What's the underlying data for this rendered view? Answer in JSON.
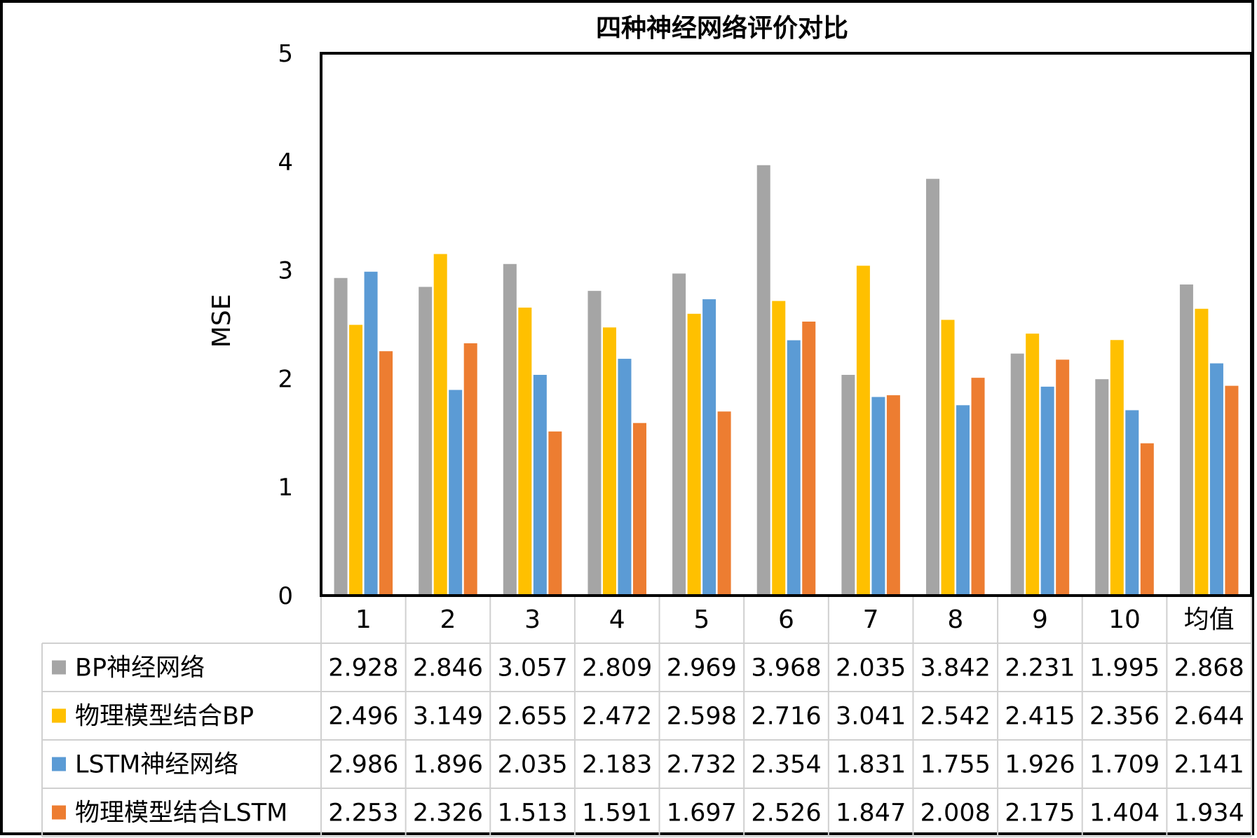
{
  "chart_data": {
    "type": "bar",
    "title": "四种神经网络评价对比",
    "ylabel": "MSE",
    "xlabel": "",
    "ylim": [
      0,
      5
    ],
    "yticks": [
      "0",
      "1",
      "2",
      "3",
      "4",
      "5"
    ],
    "grid": false,
    "legend": "data-table",
    "categories": [
      "1",
      "2",
      "3",
      "4",
      "5",
      "6",
      "7",
      "8",
      "9",
      "10",
      "均值"
    ],
    "series": [
      {
        "name": "BP神经网络",
        "color": "#a5a5a5",
        "values": [
          2.928,
          2.846,
          3.057,
          2.809,
          2.969,
          3.968,
          2.035,
          3.842,
          2.231,
          1.995,
          2.868
        ],
        "labels": [
          "2.928",
          "2.846",
          "3.057",
          "2.809",
          "2.969",
          "3.968",
          "2.035",
          "3.842",
          "2.231",
          "1.995",
          "2.868"
        ]
      },
      {
        "name": "物理模型结合BP",
        "color": "#ffc000",
        "values": [
          2.496,
          3.149,
          2.655,
          2.472,
          2.598,
          2.716,
          3.041,
          2.542,
          2.415,
          2.356,
          2.644
        ],
        "labels": [
          "2.496",
          "3.149",
          "2.655",
          "2.472",
          "2.598",
          "2.716",
          "3.041",
          "2.542",
          "2.415",
          "2.356",
          "2.644"
        ]
      },
      {
        "name": "LSTM神经网络",
        "color": "#5b9bd5",
        "values": [
          2.986,
          1.896,
          2.035,
          2.183,
          2.732,
          2.354,
          1.831,
          1.755,
          1.926,
          1.709,
          2.141
        ],
        "labels": [
          "2.986",
          "1.896",
          "2.035",
          "2.183",
          "2.732",
          "2.354",
          "1.831",
          "1.755",
          "1.926",
          "1.709",
          "2.141"
        ]
      },
      {
        "name": "物理模型结合LSTM",
        "color": "#ed7d31",
        "values": [
          2.253,
          2.326,
          1.513,
          1.591,
          1.697,
          2.526,
          1.847,
          2.008,
          2.175,
          1.404,
          1.934
        ],
        "labels": [
          "2.253",
          "2.326",
          "1.513",
          "1.591",
          "1.697",
          "2.526",
          "1.847",
          "2.008",
          "2.175",
          "1.404",
          "1.934"
        ]
      }
    ]
  }
}
